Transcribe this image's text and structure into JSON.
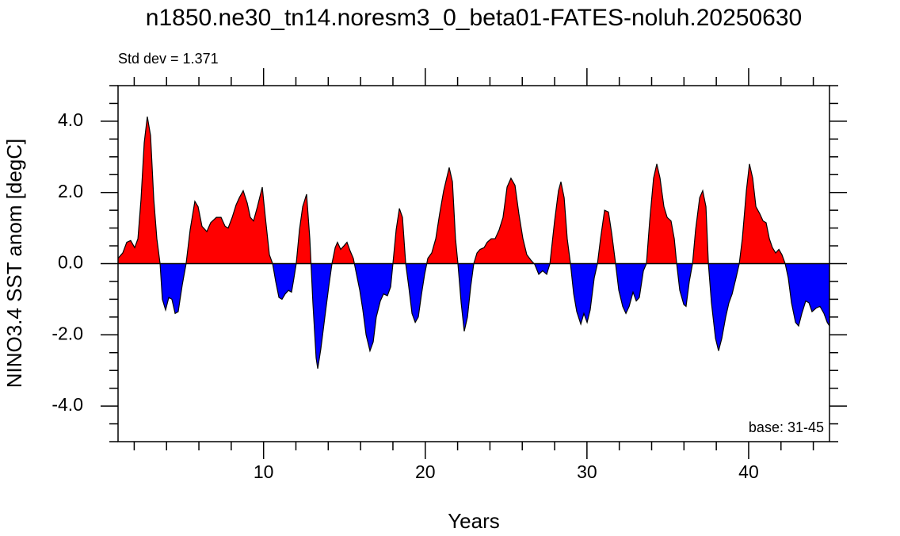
{
  "chart_data": {
    "type": "area",
    "title": "n1850.ne30_tn14.noresm3_0_beta01-FATES-noluh.20250630",
    "annotation_left": "Std dev = 1.371",
    "annotation_right": "base: 31-45",
    "xlabel": "Years",
    "ylabel": "NINO3.4 SST anom [degC]",
    "positive_color": "#ff0000",
    "negative_color": "#0000ff",
    "line_color": "#000000",
    "xlim": [
      1,
      45
    ],
    "ylim": [
      -5,
      5
    ],
    "xticks": [
      10,
      20,
      30,
      40
    ],
    "xminorticks": [
      2,
      4,
      6,
      8,
      12,
      14,
      16,
      18,
      22,
      24,
      26,
      28,
      32,
      34,
      36,
      38,
      42,
      44
    ],
    "yticks": [
      {
        "value": -4,
        "label": "-4.0"
      },
      {
        "value": -2,
        "label": "-2.0"
      },
      {
        "value": 0,
        "label": "0.0"
      },
      {
        "value": 2,
        "label": "2.0"
      },
      {
        "value": 4,
        "label": "4.0"
      }
    ],
    "yminorticks": [
      -5,
      -4.5,
      -3.5,
      -3,
      -2.5,
      -1.5,
      -1,
      -0.5,
      0.5,
      1,
      1.5,
      2.5,
      3,
      3.5,
      4.5,
      5
    ],
    "x": [
      1.0,
      1.29,
      1.54,
      1.78,
      2.03,
      2.23,
      2.42,
      2.62,
      2.81,
      3.01,
      3.21,
      3.4,
      3.6,
      3.74,
      3.94,
      4.14,
      4.33,
      4.53,
      4.72,
      4.97,
      5.21,
      5.46,
      5.75,
      5.95,
      6.19,
      6.49,
      6.73,
      7.08,
      7.37,
      7.62,
      7.81,
      8.06,
      8.3,
      8.5,
      8.74,
      8.99,
      9.18,
      9.38,
      9.62,
      9.92,
      10.11,
      10.36,
      10.56,
      10.75,
      10.95,
      11.14,
      11.34,
      11.54,
      11.73,
      11.88,
      12.02,
      12.22,
      12.42,
      12.66,
      12.86,
      13.05,
      13.25,
      13.35,
      13.54,
      13.79,
      14.03,
      14.23,
      14.43,
      14.57,
      14.77,
      14.97,
      15.16,
      15.36,
      15.55,
      15.75,
      15.95,
      16.14,
      16.34,
      16.58,
      16.78,
      16.97,
      17.22,
      17.42,
      17.66,
      17.86,
      18.0,
      18.2,
      18.4,
      18.59,
      18.79,
      18.98,
      19.18,
      19.38,
      19.57,
      19.77,
      19.96,
      20.16,
      20.4,
      20.65,
      20.89,
      21.14,
      21.48,
      21.68,
      21.87,
      22.02,
      22.22,
      22.41,
      22.61,
      22.81,
      23.0,
      23.2,
      23.39,
      23.64,
      23.83,
      24.08,
      24.32,
      24.57,
      24.81,
      25.06,
      25.3,
      25.55,
      25.79,
      26.04,
      26.28,
      26.53,
      26.77,
      27.02,
      27.26,
      27.51,
      27.71,
      28.0,
      28.24,
      28.39,
      28.59,
      28.78,
      28.98,
      29.18,
      29.37,
      29.62,
      29.81,
      30.01,
      30.2,
      30.45,
      30.65,
      30.84,
      31.09,
      31.33,
      31.53,
      31.77,
      31.97,
      32.21,
      32.41,
      32.61,
      32.85,
      33.05,
      33.24,
      33.49,
      33.68,
      33.88,
      34.12,
      34.32,
      34.52,
      34.76,
      34.96,
      35.2,
      35.4,
      35.55,
      35.74,
      35.99,
      36.13,
      36.33,
      36.53,
      36.72,
      36.97,
      37.16,
      37.36,
      37.51,
      37.7,
      37.95,
      38.14,
      38.34,
      38.58,
      38.78,
      38.98,
      39.22,
      39.42,
      39.61,
      39.86,
      40.05,
      40.25,
      40.45,
      40.69,
      40.89,
      41.08,
      41.28,
      41.47,
      41.67,
      41.87,
      42.06,
      42.26,
      42.45,
      42.65,
      42.9,
      43.09,
      43.29,
      43.53,
      43.73,
      43.92,
      44.17,
      44.41,
      44.66,
      44.86,
      45.0
    ],
    "values": [
      0.15,
      0.3,
      0.6,
      0.65,
      0.45,
      0.7,
      1.8,
      3.4,
      4.13,
      3.6,
      1.8,
      0.7,
      0,
      -1.0,
      -1.3,
      -0.95,
      -1.0,
      -1.4,
      -1.35,
      -0.6,
      0,
      0.95,
      1.75,
      1.6,
      1.05,
      0.9,
      1.15,
      1.3,
      1.3,
      1.05,
      1.0,
      1.3,
      1.65,
      1.85,
      2.05,
      1.7,
      1.3,
      1.2,
      1.6,
      2.15,
      1.3,
      0.25,
      0,
      -0.5,
      -0.95,
      -1.0,
      -0.85,
      -0.75,
      -0.8,
      -0.4,
      0,
      0.95,
      1.6,
      1.95,
      0.7,
      -1.1,
      -2.65,
      -2.95,
      -2.4,
      -1.5,
      -0.65,
      0,
      0.45,
      0.6,
      0.4,
      0.5,
      0.6,
      0.35,
      0.15,
      -0.3,
      -0.75,
      -1.3,
      -2.0,
      -2.45,
      -2.2,
      -1.5,
      -1.05,
      -0.85,
      -0.9,
      -0.65,
      0,
      0.95,
      1.55,
      1.3,
      0,
      -0.65,
      -1.4,
      -1.65,
      -1.5,
      -0.85,
      -0.3,
      0.15,
      0.3,
      0.7,
      1.4,
      2.05,
      2.7,
      2.3,
      0.7,
      0,
      -1.1,
      -1.9,
      -1.5,
      -0.65,
      0,
      0.3,
      0.4,
      0.45,
      0.6,
      0.7,
      0.7,
      0.95,
      1.3,
      2.15,
      2.4,
      2.2,
      1.4,
      0.7,
      0.25,
      0.1,
      -0.02,
      -0.3,
      -0.2,
      -0.3,
      0,
      1.2,
      2.05,
      2.3,
      1.85,
      0.7,
      0,
      -0.85,
      -1.35,
      -1.7,
      -1.4,
      -1.65,
      -1.3,
      -0.4,
      0,
      0.7,
      1.5,
      1.45,
      0.85,
      0,
      -0.75,
      -1.2,
      -1.4,
      -1.2,
      -0.8,
      -1.05,
      -0.95,
      -0.2,
      0,
      1.2,
      2.4,
      2.8,
      2.4,
      1.6,
      1.3,
      1.2,
      0.7,
      0,
      -0.75,
      -1.15,
      -1.2,
      -0.5,
      0,
      0.95,
      1.85,
      2.05,
      1.6,
      0,
      -1.1,
      -2.1,
      -2.45,
      -2.1,
      -1.5,
      -1.1,
      -0.85,
      -0.4,
      0,
      0.7,
      2.05,
      2.8,
      2.4,
      1.6,
      1.4,
      1.2,
      1.15,
      0.7,
      0.45,
      0.3,
      0.4,
      0.25,
      0,
      -0.4,
      -1.1,
      -1.65,
      -1.75,
      -1.4,
      -1.05,
      -1.1,
      -1.35,
      -1.25,
      -1.2,
      -1.4,
      -1.65,
      -1.75
    ]
  }
}
